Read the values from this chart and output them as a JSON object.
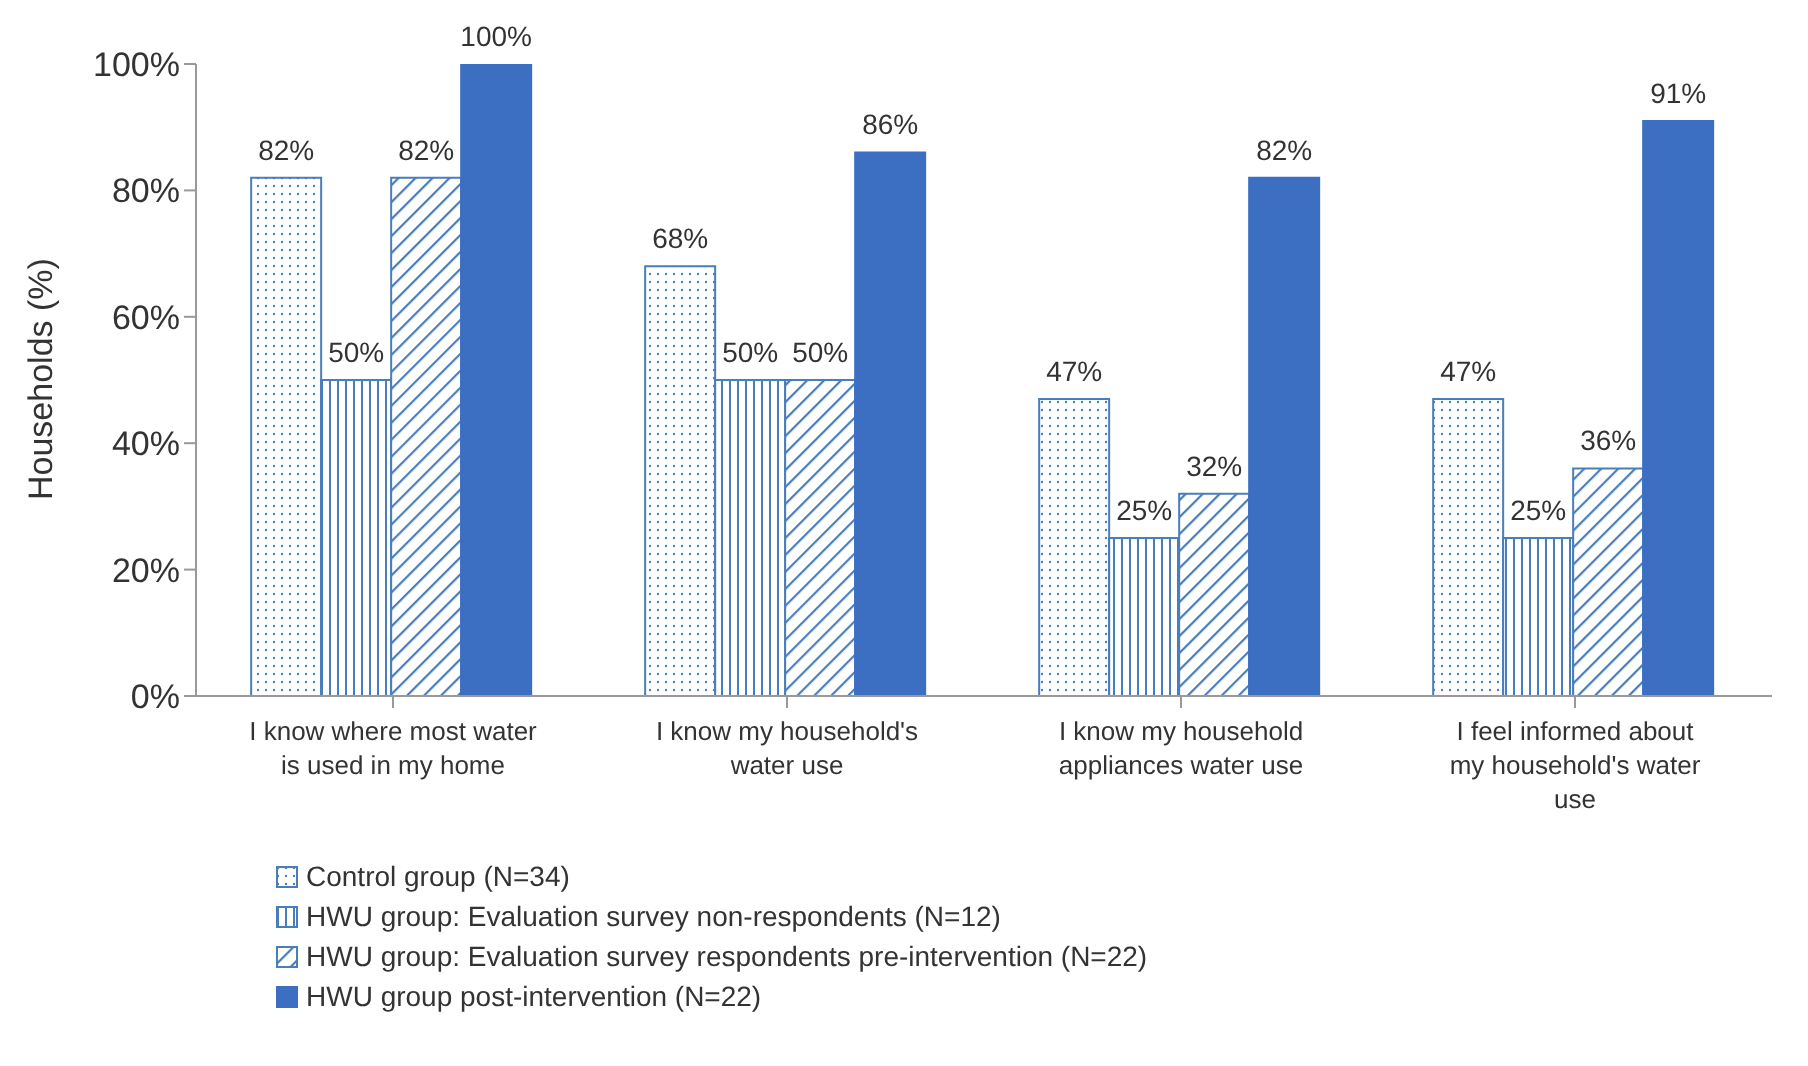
{
  "chart_data": {
    "type": "bar",
    "ylabel": "Households (%)",
    "categories": [
      "I know where most water is used in my home",
      "I know my household's water use",
      "I know my household appliances water use",
      "I feel informed about my household's water use"
    ],
    "series": [
      {
        "name": "Control group (N=34)",
        "color": "#4a7ebb",
        "values": [
          82,
          68,
          47,
          47
        ]
      },
      {
        "name": "HWU group: Evaluation survey non-respondents (N=12)",
        "color": "#4a7ebb",
        "values": [
          50,
          50,
          25,
          25
        ]
      },
      {
        "name": "HWU group: Evaluation survey respondents pre-intervention (N=22)",
        "color": "#4a7ebb",
        "values": [
          82,
          50,
          32,
          36
        ]
      },
      {
        "name": "HWU group post-intervention (N=22)",
        "color": "#3c6fc2",
        "values": [
          100,
          86,
          82,
          91
        ]
      }
    ],
    "ylim": [
      0,
      100
    ],
    "yticks": [
      {
        "value": 0,
        "label": "0%"
      },
      {
        "value": 20,
        "label": "20%"
      },
      {
        "value": 40,
        "label": "40%"
      },
      {
        "value": 60,
        "label": "60%"
      },
      {
        "value": 80,
        "label": "80%"
      },
      {
        "value": 100,
        "label": "100%"
      }
    ],
    "value_labels": [
      [
        "82%",
        "68%",
        "47%",
        "47%"
      ],
      [
        "50%",
        "50%",
        "25%",
        "25%"
      ],
      [
        "82%",
        "50%",
        "32%",
        "36%"
      ],
      [
        "100%",
        "86%",
        "82%",
        "91%"
      ]
    ],
    "grid": false,
    "legend": "bottom left"
  }
}
